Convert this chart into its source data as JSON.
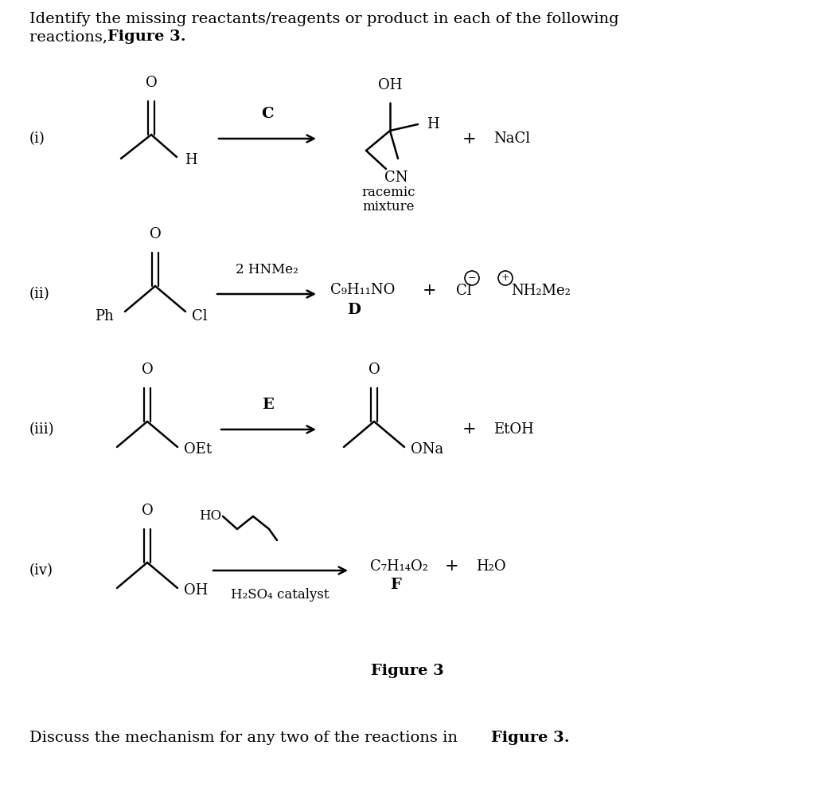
{
  "bg": "#ffffff",
  "title_line1": "Identify the missing reactants/reagents or product in each of the following",
  "title_line2_normal": "reactions, ",
  "title_line2_bold": "Figure 3.",
  "footer_normal": "Discuss the mechanism for any two of the reactions in ",
  "footer_bold": "Figure 3.",
  "fig_label": "Figure 3",
  "roman": [
    "(i)",
    "(ii)",
    "(iii)",
    "(iv)"
  ],
  "reagents": [
    "C",
    "2 HNMe₂",
    "E",
    "H₂SO₄ catalyst"
  ],
  "products_text": {
    "ii": "C₉H₁₁NO",
    "iv_formula": "C₇H₁₄O₂"
  }
}
